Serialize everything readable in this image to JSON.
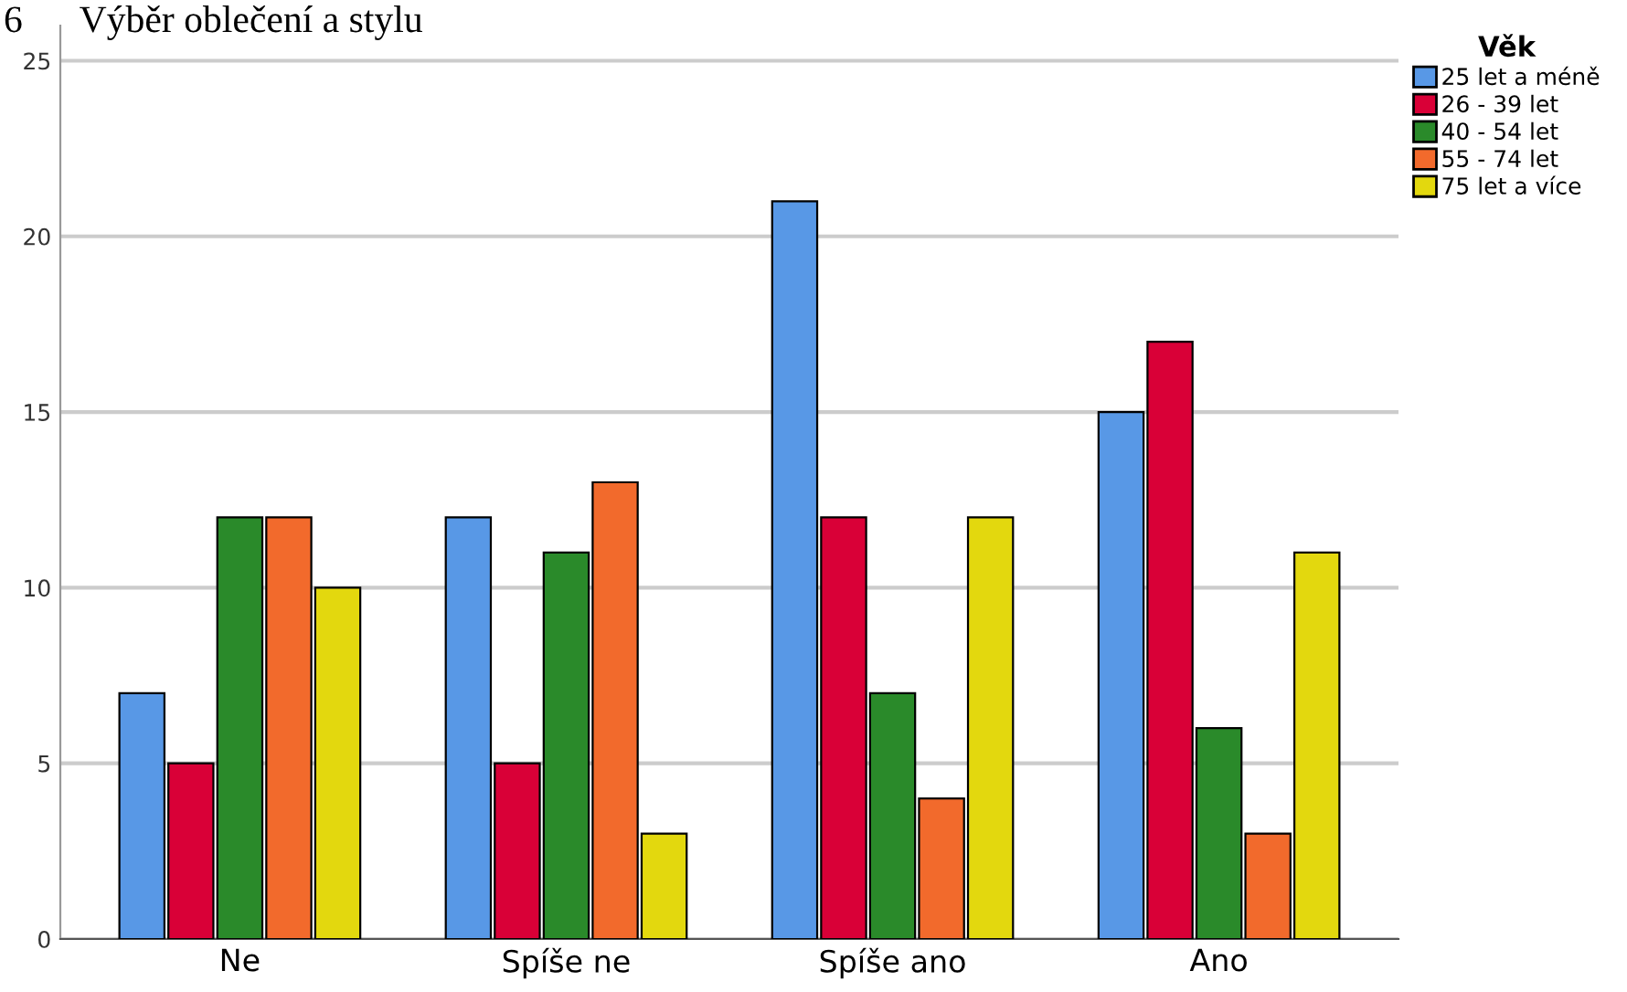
{
  "chart_data": {
    "type": "bar",
    "title": "6      Výběr oblečení a stylu",
    "legend_title": "Věk",
    "categories": [
      "Ne",
      "Spíše ne",
      "Spíše ano",
      "Ano"
    ],
    "series": [
      {
        "name": "25 let a méně",
        "color": "#5898e6",
        "values": [
          7,
          12,
          21,
          15
        ]
      },
      {
        "name": "26 - 39 let",
        "color": "#d90037",
        "values": [
          5,
          5,
          12,
          17
        ]
      },
      {
        "name": "40 - 54 let",
        "color": "#2a8a2a",
        "values": [
          12,
          11,
          7,
          6
        ]
      },
      {
        "name": "55 - 74 let",
        "color": "#f26a2c",
        "values": [
          12,
          13,
          4,
          3
        ]
      },
      {
        "name": "75 let a více",
        "color": "#e3d80e",
        "values": [
          10,
          3,
          12,
          11
        ]
      }
    ],
    "ylim": [
      0,
      26
    ],
    "yticks": [
      0,
      5,
      10,
      15,
      20,
      25
    ],
    "grid": "y",
    "legend": "top right"
  }
}
